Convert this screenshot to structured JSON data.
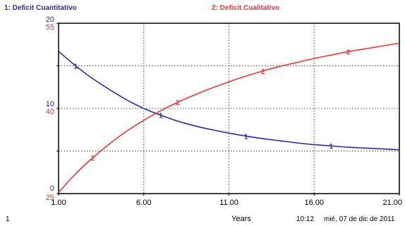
{
  "chart_data": {
    "type": "line",
    "xlabel": "Years",
    "x_ticks": [
      "1.00",
      "6.00",
      "11.00",
      "16.00",
      "21.00"
    ],
    "xlim": [
      1,
      21
    ],
    "series": [
      {
        "name": "1: Deficit Cuantitativo",
        "marker": "1",
        "color": "#2b2b9e",
        "axis": "left",
        "ylim": [
          0,
          20
        ],
        "y_ticks": [
          "20",
          "10",
          "0"
        ],
        "x": [
          1,
          2,
          3,
          4,
          5,
          6,
          7,
          8,
          9,
          10,
          11,
          12,
          13,
          14,
          15,
          16,
          17,
          18,
          19,
          20,
          21
        ],
        "values": [
          16.7,
          15.0,
          13.5,
          12.2,
          11.0,
          10.0,
          9.2,
          8.5,
          7.95,
          7.5,
          7.1,
          6.75,
          6.45,
          6.2,
          5.95,
          5.75,
          5.6,
          5.45,
          5.35,
          5.25,
          5.15
        ]
      },
      {
        "name": "2: Deficit Cualitativo",
        "marker": "2",
        "color": "#e8383c",
        "axis": "left2",
        "ylim": [
          25,
          55
        ],
        "y_ticks": [
          "55",
          "40",
          "25"
        ],
        "x": [
          1,
          2,
          3,
          4,
          5,
          6,
          7,
          8,
          9,
          10,
          11,
          12,
          13,
          14,
          15,
          16,
          17,
          18,
          19,
          20,
          21
        ],
        "values": [
          25.2,
          28.5,
          31.3,
          33.8,
          36.0,
          37.9,
          39.6,
          41.1,
          42.4,
          43.6,
          44.7,
          45.7,
          46.6,
          47.4,
          48.1,
          48.8,
          49.4,
          50.0,
          50.5,
          51.0,
          51.5
        ]
      }
    ],
    "grid": true,
    "grid_style": "dotted"
  },
  "footer": {
    "page_number": "1",
    "time": "10:12",
    "date": "mié, 07 de dic de 2011"
  }
}
